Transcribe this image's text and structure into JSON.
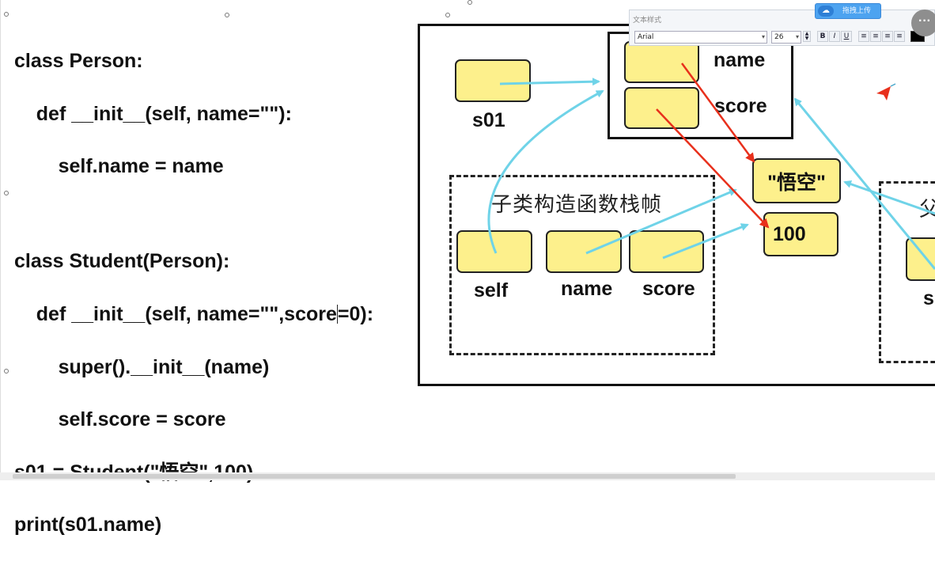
{
  "code": {
    "lines": [
      "class Person:",
      "    def __init__(self, name=\"\"):",
      "        self.name = name",
      "",
      "class Student(Person):",
      "    def __init__(self, name=\"\",score",
      "=0):",
      "        super().__init__(name)",
      "        self.score = score",
      "s01 = Student(\"悟空\",100)",
      "print(s01.name)"
    ]
  },
  "diagram": {
    "var_s01": "s01",
    "obj_attr_name": "name",
    "obj_attr_score": "score",
    "str_value": "\"悟空\"",
    "int_value": "100",
    "child_frame_title": "子类构造函数栈帧",
    "child_param_self": "self",
    "child_param_name": "name",
    "child_param_score": "score",
    "parent_frame_title_partial": "父",
    "parent_param_partial": "s"
  },
  "toolbar": {
    "title": "文本样式",
    "font_name": "Arial",
    "font_size": "26",
    "bold": "B",
    "italic": "I",
    "underline": "U",
    "upload_label": "拖拽上传",
    "more_label": "···"
  },
  "colors": {
    "cell_fill": "#fdf08c",
    "cyan_arrow": "#6fd3e8",
    "red_arrow": "#e8301c"
  }
}
